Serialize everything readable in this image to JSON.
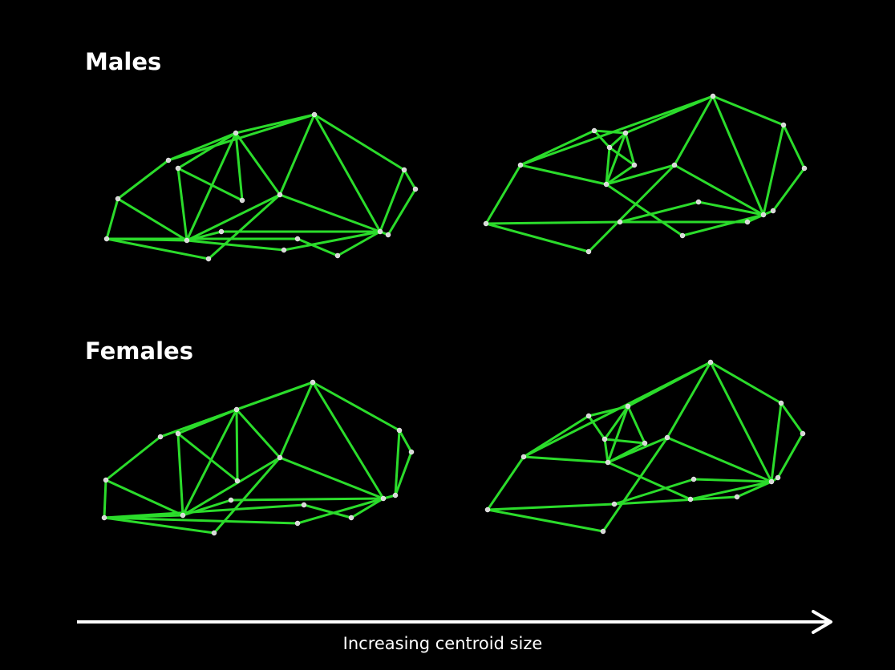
{
  "labels": {
    "males": "Males",
    "females": "Females",
    "arrow": "Increasing centroid size"
  },
  "colors": {
    "background": "#000000",
    "wireframe": "#2bdc2b",
    "landmark": "#d8d8d8",
    "text": "#ffffff"
  },
  "panels": [
    {
      "group": "Males",
      "size_rank": "smaller"
    },
    {
      "group": "Males",
      "size_rank": "larger"
    },
    {
      "group": "Females",
      "size_rank": "smaller"
    },
    {
      "group": "Females",
      "size_rank": "larger"
    }
  ]
}
